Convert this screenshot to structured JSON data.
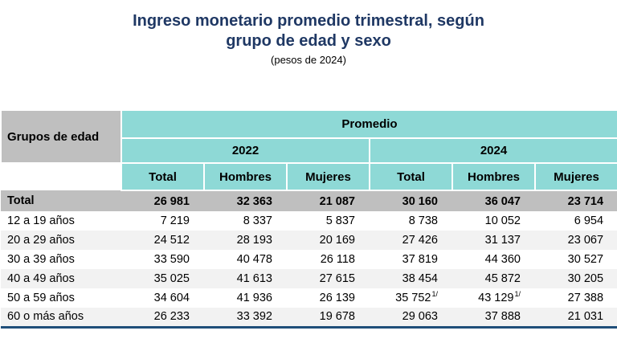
{
  "title": {
    "line1": "Ingreso monetario promedio trimestral, según",
    "line2": "grupo de edad y sexo",
    "subtitle": "(pesos de 2024)"
  },
  "table": {
    "row_header": "Grupos de edad",
    "group_header": "Promedio",
    "year_headers": [
      "2022",
      "2024"
    ],
    "col_headers": [
      "Total",
      "Hombres",
      "Mujeres",
      "Total",
      "Hombres",
      "Mujeres"
    ],
    "total_row": {
      "label": "Total",
      "values": [
        "26 981",
        "32 363",
        "21 087",
        "30 160",
        "36 047",
        "23 714"
      ]
    },
    "rows": [
      {
        "label": "12 a 19 años",
        "values": [
          "7 219",
          "8 337",
          "5 837",
          "8 738",
          "10 052",
          "6 954"
        ]
      },
      {
        "label": "20 a 29 años",
        "values": [
          "24 512",
          "28 193",
          "20 169",
          "27 426",
          "31 137",
          "23 067"
        ]
      },
      {
        "label": "30 a 39 años",
        "values": [
          "33 590",
          "40 478",
          "26 118",
          "37 819",
          "44 360",
          "30 527"
        ]
      },
      {
        "label": "40 a 49 años",
        "values": [
          "35 025",
          "41 613",
          "27 615",
          "38 454",
          "45 872",
          "30 205"
        ]
      },
      {
        "label": "50 a 59 años",
        "values": [
          "34 604",
          "41 936",
          "26 139",
          "35 752",
          "43 129",
          "27 388"
        ],
        "notes": {
          "3": "1/",
          "4": "1/"
        }
      },
      {
        "label": "60 o más años",
        "values": [
          "26 233",
          "33 392",
          "19 678",
          "29 063",
          "37 888",
          "21 031"
        ]
      }
    ]
  },
  "colors": {
    "title_blue": "#1F3864",
    "header_teal": "#8ED9D6",
    "header_gray": "#BFBFBF",
    "zebra_gray": "#F2F2F2",
    "bottom_rule_navy": "#1F4E79"
  },
  "chart_data": {
    "type": "table",
    "title": "Ingreso monetario promedio trimestral, según grupo de edad y sexo (pesos de 2024)",
    "columns": [
      "Grupos de edad",
      "2022 Total",
      "2022 Hombres",
      "2022 Mujeres",
      "2024 Total",
      "2024 Hombres",
      "2024 Mujeres"
    ],
    "rows": [
      [
        "Total",
        26981,
        32363,
        21087,
        30160,
        36047,
        23714
      ],
      [
        "12 a 19 años",
        7219,
        8337,
        5837,
        8738,
        10052,
        6954
      ],
      [
        "20 a 29 años",
        24512,
        28193,
        20169,
        27426,
        31137,
        23067
      ],
      [
        "30 a 39 años",
        33590,
        40478,
        26118,
        37819,
        44360,
        30527
      ],
      [
        "40 a 49 años",
        35025,
        41613,
        27615,
        38454,
        45872,
        30205
      ],
      [
        "50 a 59 años",
        34604,
        41936,
        26139,
        35752,
        43129,
        27388
      ],
      [
        "60 o más años",
        26233,
        33392,
        19678,
        29063,
        37888,
        21031
      ]
    ],
    "footnote_marker": "1/",
    "cells_with_footnote": [
      [
        "50 a 59 años",
        "2024 Total"
      ],
      [
        "50 a 59 años",
        "2024 Hombres"
      ]
    ]
  }
}
